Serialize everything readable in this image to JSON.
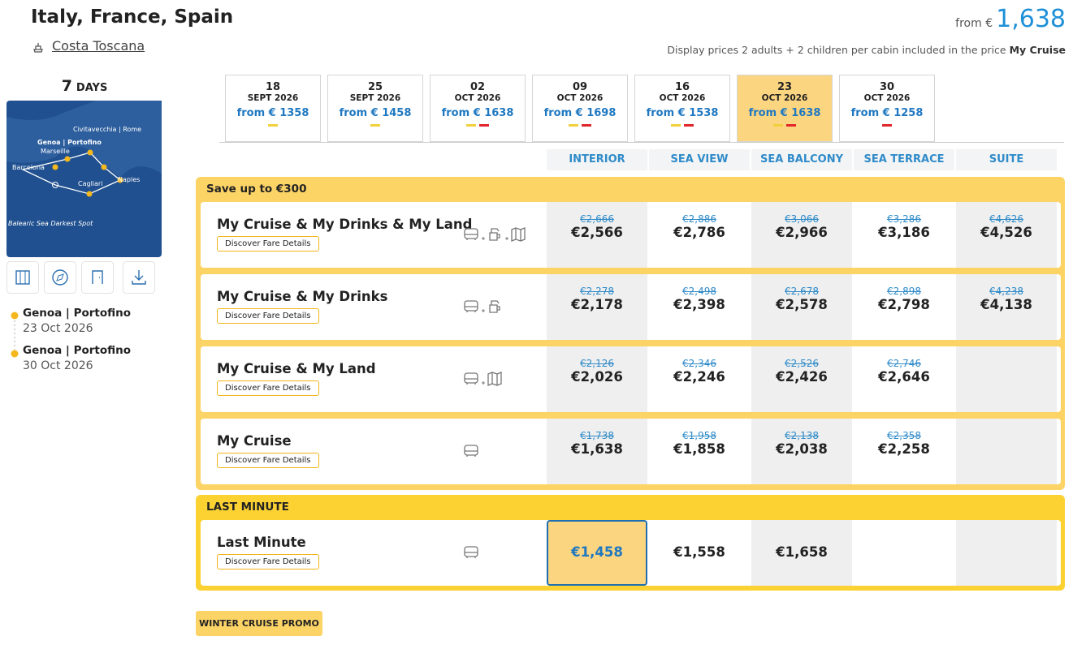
{
  "header": {
    "title": "Italy, France, Spain",
    "ship": "Costa Toscana",
    "from_label": "from €",
    "price": "1,638",
    "note": "Display prices 2 adults + 2 children per cabin included in the price",
    "note_bold": "My Cruise"
  },
  "sidebar": {
    "days_number": "7",
    "days_label": "DAYS",
    "map_labels": [
      "Civitavecchia | Rome",
      "Genoa | Portofino",
      "Marseille",
      "Barcelona",
      "Naples",
      "Cagliari",
      "Balearic Sea Darkest Spot"
    ],
    "itinerary": [
      {
        "port": "Genoa | Portofino",
        "date": "23 Oct 2026"
      },
      {
        "port": "Genoa | Portofino",
        "date": "30 Oct 2026"
      }
    ]
  },
  "dates": [
    {
      "day": "18",
      "month": "SEPT 2026",
      "price": "from € 1358"
    },
    {
      "day": "25",
      "month": "SEPT 2026",
      "price": "from € 1458"
    },
    {
      "day": "02",
      "month": "OCT 2026",
      "price": "from € 1638"
    },
    {
      "day": "09",
      "month": "OCT 2026",
      "price": "from € 1698"
    },
    {
      "day": "16",
      "month": "OCT 2026",
      "price": "from € 1538"
    },
    {
      "day": "23",
      "month": "OCT 2026",
      "price": "from € 1638"
    },
    {
      "day": "30",
      "month": "OCT 2026",
      "price": "from € 1258"
    }
  ],
  "cabins": [
    "INTERIOR",
    "SEA VIEW",
    "SEA BALCONY",
    "SEA TERRACE",
    "SUITE"
  ],
  "groups": [
    {
      "title": "Save up to €300",
      "fares": [
        {
          "name": "My Cruise & My Drinks & My Land",
          "button": "Discover Fare Details",
          "prices": [
            {
              "old": "€2,666",
              "new": "€2,566"
            },
            {
              "old": "€2,886",
              "new": "€2,786"
            },
            {
              "old": "€3,066",
              "new": "€2,966"
            },
            {
              "old": "€3,286",
              "new": "€3,186"
            },
            {
              "old": "€4,626",
              "new": "€4,526"
            }
          ]
        },
        {
          "name": "My Cruise & My Drinks",
          "button": "Discover Fare Details",
          "prices": [
            {
              "old": "€2,278",
              "new": "€2,178"
            },
            {
              "old": "€2,498",
              "new": "€2,398"
            },
            {
              "old": "€2,678",
              "new": "€2,578"
            },
            {
              "old": "€2,898",
              "new": "€2,798"
            },
            {
              "old": "€4,238",
              "new": "€4,138"
            }
          ]
        },
        {
          "name": "My Cruise & My Land",
          "button": "Discover Fare Details",
          "prices": [
            {
              "old": "€2,126",
              "new": "€2,026"
            },
            {
              "old": "€2,346",
              "new": "€2,246"
            },
            {
              "old": "€2,526",
              "new": "€2,426"
            },
            {
              "old": "€2,746",
              "new": "€2,646"
            }
          ]
        },
        {
          "name": "My Cruise",
          "button": "Discover Fare Details",
          "prices": [
            {
              "old": "€1,738",
              "new": "€1,638"
            },
            {
              "old": "€1,958",
              "new": "€1,858"
            },
            {
              "old": "€2,138",
              "new": "€2,038"
            },
            {
              "old": "€2,358",
              "new": "€2,258"
            }
          ]
        }
      ]
    },
    {
      "title": "LAST MINUTE",
      "fares": [
        {
          "name": "Last Minute",
          "button": "Discover Fare Details",
          "prices": [
            {
              "new": "€1,458"
            },
            {
              "new": "€1,558"
            },
            {
              "new": "€1,658"
            }
          ]
        }
      ]
    }
  ],
  "promo": "WINTER CRUISE PROMO"
}
